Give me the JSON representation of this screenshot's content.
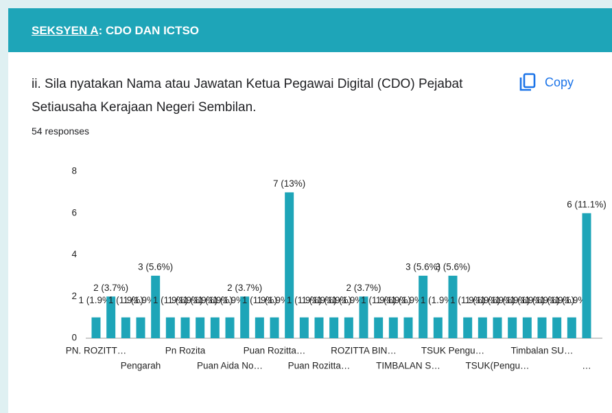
{
  "header": {
    "title_underlined": "SEKSYEN A",
    "title_rest": ": CDO DAN ICTSO"
  },
  "question": "ii. Sila nyatakan Nama atau Jawatan Ketua Pegawai Digital (CDO) Pejabat Setiausaha Kerajaan Negeri Sembilan.",
  "copy_button": "Copy",
  "responses": "54 responses",
  "chart_data": {
    "type": "bar",
    "color": "#1ea5b8",
    "categories": [
      "PN. ROZITT…",
      null,
      null,
      "Pengarah",
      null,
      null,
      "Pn Rozita",
      null,
      null,
      "Puan Aida No…",
      null,
      null,
      "Puan Rozitta…",
      null,
      null,
      "Puan Rozitta…",
      null,
      null,
      "ROZITTA BIN…",
      null,
      null,
      "TIMBALAN S…",
      null,
      null,
      "TSUK Pengu…",
      null,
      null,
      "TSUK(Pengu…",
      null,
      null,
      "Timbalan SU…",
      null,
      null,
      "…"
    ],
    "values": [
      1,
      2,
      1,
      1,
      3,
      1,
      1,
      1,
      1,
      1,
      2,
      1,
      1,
      7,
      1,
      1,
      1,
      1,
      2,
      1,
      1,
      1,
      3,
      1,
      3,
      1,
      1,
      1,
      1,
      1,
      1,
      1,
      1,
      6
    ],
    "value_labels": [
      "1 (1.9%)",
      "2 (3.7%)",
      "1 (1.9%)",
      "1 (1.9%)",
      "3 (5.6%)",
      "1 (1.9%)",
      "1 (1.9%)",
      "1 (1.9%)",
      "1 (1.9%)",
      "1 (1.9%)",
      "2 (3.7%)",
      "1 (1.9%)",
      "1 (1.9%)",
      "7 (13%)",
      "1 (1.9%)",
      "1 (1.9%)",
      "1 (1.9%)",
      "1 (1.9%)",
      "2 (3.7%)",
      "1 (1.9%)",
      "1 (1.9%)",
      "1 (1.9%)",
      "3 (5.6%)",
      "1 (1.9%)",
      "3 (5.6%)",
      "1 (1.9%)",
      "1 (1.9%)",
      "1 (1.9%)",
      "1 (1.9%)",
      "1 (1.9%)",
      "1 (1.9%)",
      "1 (1.9%)",
      "1 (1.9%)",
      "6 (11.1%)"
    ],
    "ylim": [
      0,
      8
    ],
    "yticks": [
      0,
      2,
      4,
      6,
      8
    ],
    "grid": false
  }
}
